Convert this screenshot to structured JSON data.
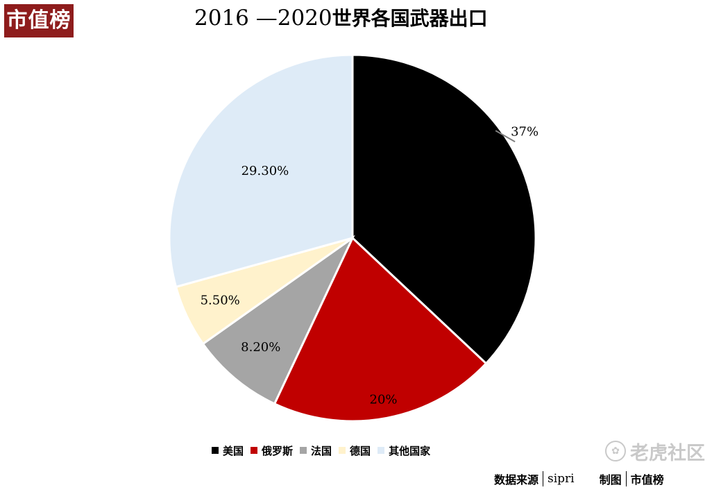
{
  "logo": {
    "text": "市值榜"
  },
  "watermark": {
    "text": "老虎社区"
  },
  "source": {
    "label": "数据来源",
    "value": "sipri",
    "maker_label": "制图",
    "maker_value": "市值榜"
  },
  "chart_data": {
    "type": "pie",
    "title": "2016 —2020世界各国武器出口",
    "title_parts": {
      "years": "2016 —2020",
      "text": "世界各国武器出口"
    },
    "legend_position": "bottom",
    "slices": [
      {
        "name": "美国",
        "value": 37,
        "label": "37%",
        "color": "#000000"
      },
      {
        "name": "俄罗斯",
        "value": 20,
        "label": "20%",
        "color": "#c00000"
      },
      {
        "name": "法国",
        "value": 8.2,
        "label": "8.20%",
        "color": "#a5a5a5"
      },
      {
        "name": "德国",
        "value": 5.5,
        "label": "5.50%",
        "color": "#fff2cc"
      },
      {
        "name": "其他国家",
        "value": 29.3,
        "label": "29.30%",
        "color": "#deebf7"
      }
    ]
  }
}
